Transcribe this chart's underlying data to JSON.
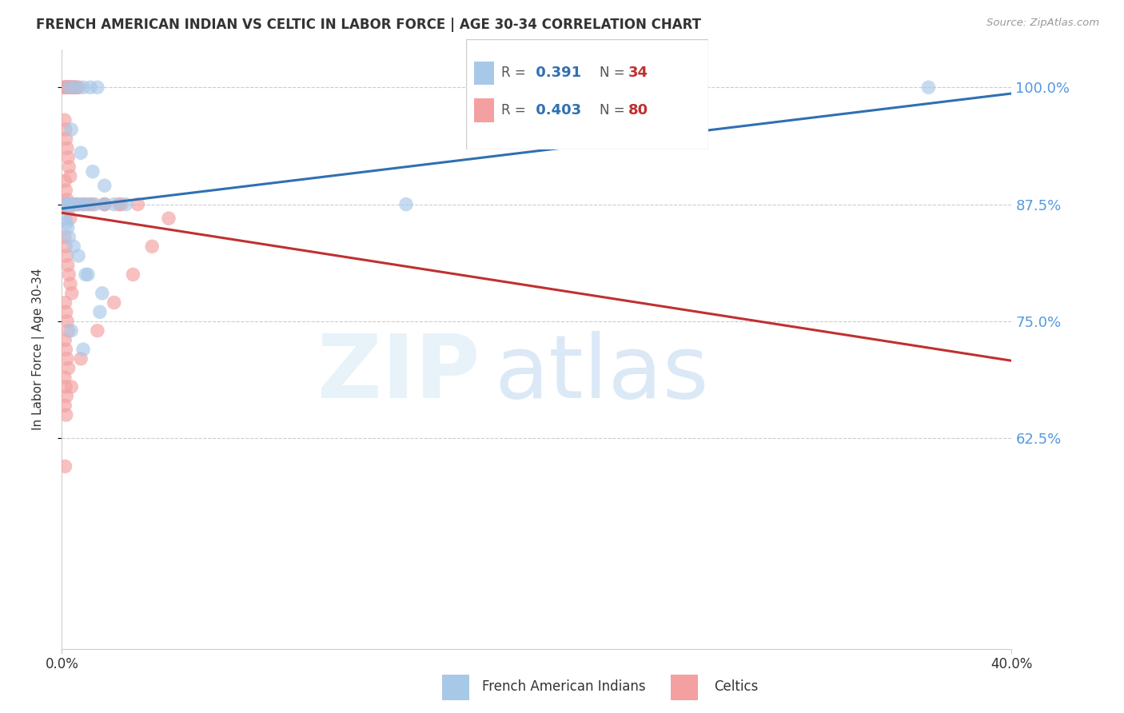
{
  "title": "FRENCH AMERICAN INDIAN VS CELTIC IN LABOR FORCE | AGE 30-34 CORRELATION CHART",
  "source": "Source: ZipAtlas.com",
  "ylabel": "In Labor Force | Age 30-34",
  "xlim": [
    0.0,
    40.0
  ],
  "ylim": [
    0.4,
    1.04
  ],
  "yticks": [
    0.625,
    0.75,
    0.875,
    1.0
  ],
  "ytick_labels": [
    "62.5%",
    "75.0%",
    "87.5%",
    "100.0%"
  ],
  "xtick_labels": [
    "0.0%",
    "40.0%"
  ],
  "watermark_zip": "ZIP",
  "watermark_atlas": "atlas",
  "legend_r1": "0.391",
  "legend_n1": "34",
  "legend_r2": "0.403",
  "legend_n2": "80",
  "legend_label1": "French American Indians",
  "legend_label2": "Celtics",
  "blue_fill_color": "#a8c8e8",
  "pink_fill_color": "#f4a0a0",
  "blue_line_color": "#3070b0",
  "pink_line_color": "#c03030",
  "text_blue": "#5599dd",
  "text_dark": "#333333",
  "text_gray": "#999999",
  "grid_color": "#cccccc",
  "blue_scatter_x": [
    0.2,
    0.25,
    0.35,
    0.5,
    0.7,
    0.9,
    1.1,
    1.4,
    1.8,
    2.2,
    2.7,
    0.3,
    0.6,
    0.9,
    1.2,
    1.5,
    0.4,
    0.8,
    1.3,
    1.8,
    0.5,
    1.0,
    1.6,
    0.3,
    0.7,
    1.1,
    1.7,
    0.4,
    0.9,
    14.5,
    36.5,
    0.15,
    0.2,
    0.25
  ],
  "blue_scatter_y": [
    0.875,
    0.875,
    0.875,
    0.875,
    0.875,
    0.875,
    0.875,
    0.875,
    0.875,
    0.875,
    0.875,
    1.0,
    1.0,
    1.0,
    1.0,
    1.0,
    0.955,
    0.93,
    0.91,
    0.895,
    0.83,
    0.8,
    0.76,
    0.84,
    0.82,
    0.8,
    0.78,
    0.74,
    0.72,
    0.875,
    1.0,
    0.86,
    0.855,
    0.85
  ],
  "pink_scatter_x": [
    0.08,
    0.1,
    0.12,
    0.15,
    0.18,
    0.2,
    0.22,
    0.25,
    0.28,
    0.3,
    0.1,
    0.12,
    0.15,
    0.18,
    0.2,
    0.22,
    0.25,
    0.28,
    0.3,
    0.33,
    0.36,
    0.4,
    0.44,
    0.48,
    0.52,
    0.58,
    0.64,
    0.7,
    0.12,
    0.15,
    0.18,
    0.22,
    0.26,
    0.3,
    0.35,
    0.13,
    0.17,
    0.22,
    0.28,
    0.35,
    0.12,
    0.16,
    0.2,
    0.25,
    0.3,
    0.36,
    0.42,
    0.14,
    0.18,
    0.23,
    0.28,
    0.13,
    0.17,
    0.22,
    0.28,
    0.12,
    0.16,
    0.2,
    0.13,
    0.18,
    0.14,
    0.5,
    1.2,
    1.8,
    2.5,
    3.2,
    0.6,
    0.9,
    1.3,
    1.8,
    2.4,
    0.7,
    1.0,
    0.4,
    0.8,
    1.5,
    2.2,
    3.0,
    3.8,
    4.5
  ],
  "pink_scatter_y": [
    0.875,
    0.875,
    0.875,
    0.875,
    0.875,
    0.875,
    0.875,
    0.875,
    0.875,
    0.875,
    1.0,
    1.0,
    1.0,
    1.0,
    1.0,
    1.0,
    1.0,
    1.0,
    1.0,
    1.0,
    1.0,
    1.0,
    1.0,
    1.0,
    1.0,
    1.0,
    1.0,
    1.0,
    0.965,
    0.955,
    0.945,
    0.935,
    0.925,
    0.915,
    0.905,
    0.9,
    0.89,
    0.88,
    0.87,
    0.86,
    0.84,
    0.83,
    0.82,
    0.81,
    0.8,
    0.79,
    0.78,
    0.77,
    0.76,
    0.75,
    0.74,
    0.73,
    0.72,
    0.71,
    0.7,
    0.69,
    0.68,
    0.67,
    0.66,
    0.65,
    0.595,
    0.875,
    0.875,
    0.875,
    0.875,
    0.875,
    0.875,
    0.875,
    0.875,
    0.875,
    0.875,
    0.875,
    0.875,
    0.68,
    0.71,
    0.74,
    0.77,
    0.8,
    0.83,
    0.86
  ]
}
